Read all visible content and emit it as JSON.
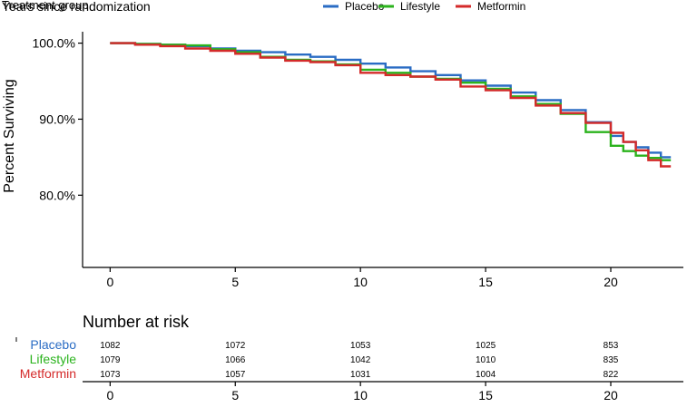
{
  "colors": {
    "placebo": "#2a6cc4",
    "lifestyle": "#2bb31d",
    "metformin": "#d42a2a",
    "axis": "#000000"
  },
  "chart_data": {
    "type": "line",
    "step": true,
    "header_labels": [
      "Treatment group",
      "Years since randomization"
    ],
    "ylabel": "Percent Surviving",
    "xlim": [
      -1.1,
      22.9
    ],
    "ylim": [
      70.5,
      101.5
    ],
    "x_ticks": [
      0,
      5,
      10,
      15,
      20
    ],
    "y_ticks": [
      {
        "value": 100,
        "label": "100.0%"
      },
      {
        "value": 90,
        "label": "90.0%"
      },
      {
        "value": 80,
        "label": "80.0%"
      }
    ],
    "grid": false,
    "legend_position": "top",
    "series": [
      {
        "name": "Placebo",
        "key": "placebo",
        "x": [
          0,
          1,
          2,
          3,
          4,
          5,
          6,
          7,
          8,
          9,
          10,
          11,
          12,
          13,
          14,
          15,
          16,
          17,
          18,
          19,
          20,
          20.5,
          21,
          21.5,
          22,
          22.4
        ],
        "y": [
          100,
          99.9,
          99.8,
          99.6,
          99.3,
          99.0,
          98.8,
          98.5,
          98.2,
          97.8,
          97.3,
          96.8,
          96.3,
          95.8,
          95.1,
          94.4,
          93.5,
          92.5,
          91.2,
          89.6,
          87.8,
          87.0,
          86.3,
          85.6,
          85.0,
          85.0
        ]
      },
      {
        "name": "Lifestyle",
        "key": "lifestyle",
        "x": [
          0,
          1,
          2,
          3,
          4,
          5,
          6,
          7,
          8,
          9,
          10,
          11,
          12,
          13,
          14,
          15,
          16,
          17,
          18,
          19,
          20,
          20.5,
          21,
          21.5,
          22,
          22.4
        ],
        "y": [
          100,
          99.9,
          99.8,
          99.7,
          99.2,
          98.8,
          98.2,
          97.8,
          97.6,
          97.2,
          96.5,
          96.1,
          95.6,
          95.3,
          94.8,
          94.0,
          93.0,
          92.0,
          90.7,
          88.3,
          86.5,
          85.8,
          85.2,
          84.9,
          84.6,
          84.6
        ]
      },
      {
        "name": "Metformin",
        "key": "metformin",
        "x": [
          0,
          1,
          2,
          3,
          4,
          5,
          6,
          7,
          8,
          9,
          10,
          11,
          12,
          13,
          14,
          15,
          16,
          17,
          18,
          19,
          20,
          20.5,
          21,
          21.5,
          22,
          22.4
        ],
        "y": [
          100,
          99.8,
          99.6,
          99.3,
          99.0,
          98.6,
          98.1,
          97.7,
          97.5,
          97.1,
          96.1,
          95.8,
          95.6,
          95.2,
          94.3,
          93.8,
          92.8,
          91.8,
          90.8,
          89.5,
          88.2,
          87.0,
          85.9,
          84.6,
          83.8,
          83.8
        ]
      }
    ]
  },
  "risk_table": {
    "title": "Number at risk",
    "times": [
      0,
      5,
      10,
      15,
      20
    ],
    "rows": [
      {
        "group": "Placebo",
        "key": "placebo",
        "counts": [
          "1082",
          "1072",
          "1053",
          "1025",
          "853"
        ]
      },
      {
        "group": "Lifestyle",
        "key": "lifestyle",
        "counts": [
          "1079",
          "1066",
          "1042",
          "1010",
          "835"
        ]
      },
      {
        "group": "Metformin",
        "key": "metformin",
        "counts": [
          "1073",
          "1057",
          "1031",
          "1004",
          "822"
        ]
      }
    ]
  }
}
